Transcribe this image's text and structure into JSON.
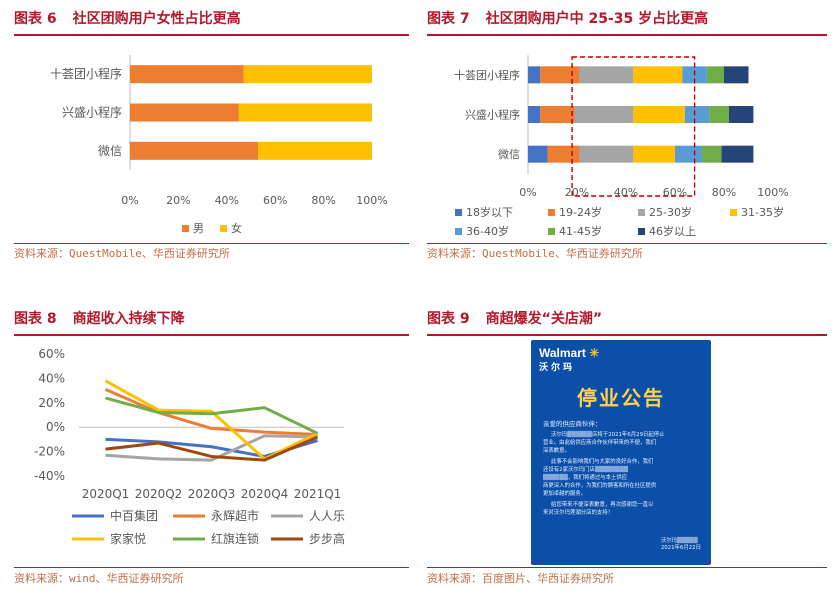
{
  "fig6": {
    "title_num": "图表 6",
    "title_text": "社区团购用户女性占比更高",
    "source": "资料来源：QuestMobile、华西证券研究所",
    "chart_data": {
      "type": "bar",
      "orientation": "horizontal",
      "stacked": "percent",
      "categories": [
        "十荟团小程序",
        "兴盛小程序",
        "微信"
      ],
      "series": [
        {
          "name": "男",
          "values": [
            47,
            45,
            53
          ],
          "color": "#ed7d31"
        },
        {
          "name": "女",
          "values": [
            53,
            55,
            47
          ],
          "color": "#ffc000"
        }
      ],
      "xticks": [
        "0%",
        "20%",
        "40%",
        "60%",
        "80%",
        "100%"
      ],
      "xlim": [
        0,
        100
      ],
      "legend": "bottom",
      "grid": false
    }
  },
  "fig7": {
    "title_num": "图表 7",
    "title_text": "社区团购用户中 25-35 岁占比更高",
    "source": "资料来源：QuestMobile、华西证券研究所",
    "chart_data": {
      "type": "bar",
      "orientation": "horizontal",
      "stacked": "percent",
      "categories": [
        "十荟团小程序",
        "兴盛小程序",
        "微信"
      ],
      "series": [
        {
          "name": "18岁以下",
          "values": [
            5,
            5,
            8
          ],
          "color": "#4472c4"
        },
        {
          "name": "19-24岁",
          "values": [
            16,
            14,
            13
          ],
          "color": "#ed7d31"
        },
        {
          "name": "25-30岁",
          "values": [
            22,
            24,
            22
          ],
          "color": "#a5a5a5"
        },
        {
          "name": "31-35岁",
          "values": [
            20,
            21,
            17
          ],
          "color": "#ffc000"
        },
        {
          "name": "36-40岁",
          "values": [
            10,
            10,
            11
          ],
          "color": "#5b9bd5"
        },
        {
          "name": "41-45岁",
          "values": [
            7,
            8,
            8
          ],
          "color": "#70ad47"
        },
        {
          "name": "46岁以上",
          "values": [
            10,
            10,
            13
          ],
          "color": "#264478"
        }
      ],
      "xticks": [
        "0%",
        "20%",
        "40%",
        "60%",
        "80%",
        "100%"
      ],
      "xlim": [
        0,
        100
      ],
      "highlight_range": [
        18,
        68
      ],
      "legend": "bottom",
      "grid": false
    }
  },
  "fig8": {
    "title_num": "图表 8",
    "title_text": "商超收入持续下降",
    "source": "资料来源：wind、华西证券研究所",
    "chart_data": {
      "type": "line",
      "x": [
        "2020Q1",
        "2020Q2",
        "2020Q3",
        "2020Q4",
        "2021Q1"
      ],
      "ylim": [
        -40,
        60
      ],
      "yticks": [
        "60%",
        "40%",
        "20%",
        "0%",
        "-20%",
        "-40%"
      ],
      "series": [
        {
          "name": "中百集团",
          "values": [
            -10,
            -12,
            -16,
            -24,
            -11
          ],
          "color": "#4472c4"
        },
        {
          "name": "永辉超市",
          "values": [
            31,
            12,
            -1,
            -4,
            -6
          ],
          "color": "#ed7d31"
        },
        {
          "name": "人人乐",
          "values": [
            -23,
            -26,
            -27,
            -7,
            -8
          ],
          "color": "#a5a5a5"
        },
        {
          "name": "家家悦",
          "values": [
            38,
            14,
            13,
            -26,
            -5
          ],
          "color": "#ffc000"
        },
        {
          "name": "红旗连锁",
          "values": [
            24,
            12,
            11,
            16,
            -5
          ],
          "color": "#70ad47"
        },
        {
          "name": "步步高",
          "values": [
            -18,
            -13,
            -24,
            -27,
            -8
          ],
          "color": "#9e480e"
        }
      ],
      "legend": "bottom",
      "grid": false
    }
  },
  "fig9": {
    "title_num": "图表 9",
    "title_text": "商超爆发“关店潮”",
    "source": "资料来源：百度图片、华西证券研究所",
    "notice": {
      "brand_en": "Walmart",
      "brand_cn": "沃尔玛",
      "heading": "停业公告",
      "salutation": "亲爱的供应商伙伴：",
      "line1": "沃尔玛▒▒▒▒▒▒店将于2021年6月29日起停止",
      "line2": "营业。由此给供应商合作伙伴带来的不便，我们",
      "line3": "深表歉意。",
      "line4": "此事不会影响我们与大家的良好合作，我们",
      "line5": "还设有2家沃尔玛门店▒▒▒▒▒▒▒▒",
      "line6": "▒▒▒▒▒▒，我们将通过与本土供应",
      "line7": "商更深入的合作，为我们的顾客和所在社区提供",
      "line8": "更加卓越的服务。",
      "line9": "给您带来不便深表歉意，再次感谢您一直以",
      "line10": "来对沃尔玛莲湖分店的支持！",
      "sign": "沃尔玛▒▒▒▒▒",
      "date": "2021年6月22日"
    }
  }
}
